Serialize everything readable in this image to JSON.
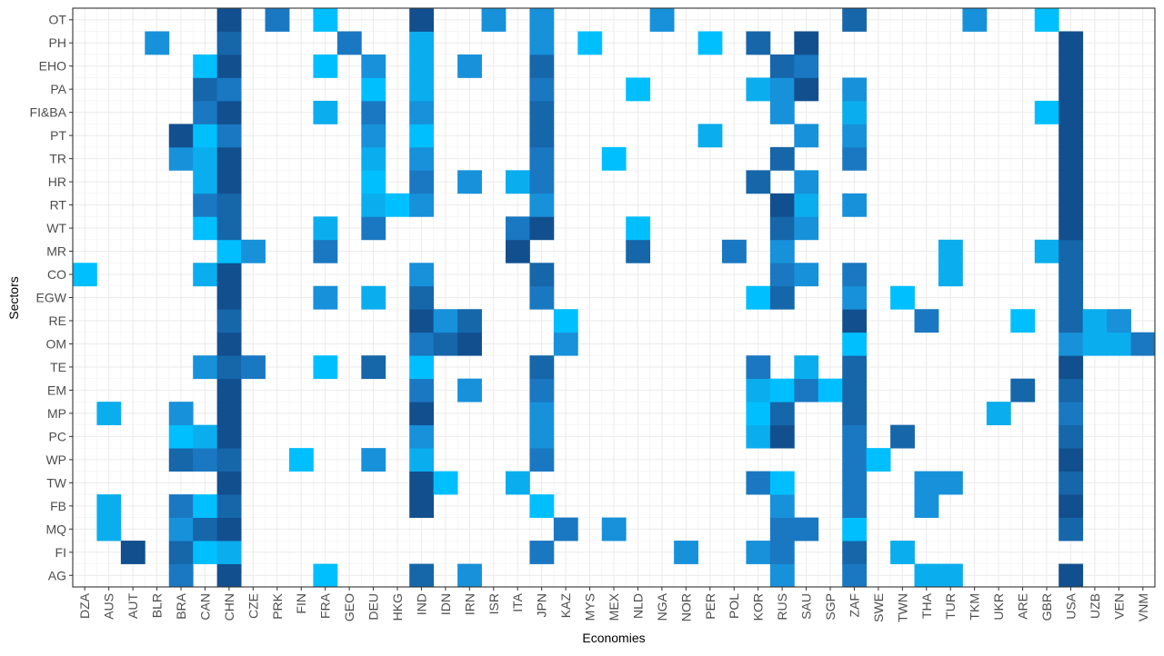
{
  "chart_data": {
    "type": "heatmap",
    "title": "",
    "xlabel": "Economies",
    "ylabel": "Sectors",
    "legend": "none",
    "grid": true,
    "color_scale": [
      "#00bfff",
      "#0aaeee",
      "#1791da",
      "#1a78c2",
      "#1666aa",
      "#124f8e"
    ],
    "x_categories": [
      "DZA",
      "AUS",
      "AUT",
      "BLR",
      "BRA",
      "CAN",
      "CHN",
      "CZE",
      "PRK",
      "FIN",
      "FRA",
      "GEO",
      "DEU",
      "HKG",
      "IND",
      "IDN",
      "IRN",
      "ISR",
      "ITA",
      "JPN",
      "KAZ",
      "MYS",
      "MEX",
      "NLD",
      "NGA",
      "NOR",
      "PER",
      "POL",
      "KOR",
      "RUS",
      "SAU",
      "SGP",
      "ZAF",
      "SWE",
      "TWN",
      "THA",
      "TUR",
      "TKM",
      "UKR",
      "ARE",
      "GBR",
      "USA",
      "UZB",
      "VEN",
      "VNM"
    ],
    "y_categories": [
      "AG",
      "FI",
      "MQ",
      "FB",
      "TW",
      "WP",
      "PC",
      "MP",
      "EM",
      "TE",
      "OM",
      "RE",
      "EGW",
      "CO",
      "MR",
      "WT",
      "RT",
      "HR",
      "TR",
      "PT",
      "FI&BA",
      "PA",
      "EHO",
      "PH",
      "OT"
    ],
    "cells": [
      [
        "BRA",
        "AG",
        3
      ],
      [
        "CHN",
        "AG",
        5
      ],
      [
        "FRA",
        "AG",
        0
      ],
      [
        "IND",
        "AG",
        4
      ],
      [
        "IRN",
        "AG",
        2
      ],
      [
        "RUS",
        "AG",
        2
      ],
      [
        "ZAF",
        "AG",
        3
      ],
      [
        "THA",
        "AG",
        1
      ],
      [
        "TUR",
        "AG",
        1
      ],
      [
        "USA",
        "AG",
        5
      ],
      [
        "AUT",
        "FI",
        5
      ],
      [
        "BRA",
        "FI",
        4
      ],
      [
        "CAN",
        "FI",
        0
      ],
      [
        "CHN",
        "FI",
        1
      ],
      [
        "JPN",
        "FI",
        3
      ],
      [
        "NOR",
        "FI",
        2
      ],
      [
        "KOR",
        "FI",
        2
      ],
      [
        "RUS",
        "FI",
        3
      ],
      [
        "ZAF",
        "FI",
        4
      ],
      [
        "TWN",
        "FI",
        1
      ],
      [
        "AUS",
        "MQ",
        1
      ],
      [
        "BRA",
        "MQ",
        2
      ],
      [
        "CAN",
        "MQ",
        4
      ],
      [
        "CHN",
        "MQ",
        5
      ],
      [
        "KAZ",
        "MQ",
        3
      ],
      [
        "MEX",
        "MQ",
        2
      ],
      [
        "RUS",
        "MQ",
        3
      ],
      [
        "SAU",
        "MQ",
        3
      ],
      [
        "ZAF",
        "MQ",
        0
      ],
      [
        "USA",
        "MQ",
        4
      ],
      [
        "AUS",
        "FB",
        1
      ],
      [
        "BRA",
        "FB",
        3
      ],
      [
        "CAN",
        "FB",
        0
      ],
      [
        "CHN",
        "FB",
        4
      ],
      [
        "IND",
        "FB",
        5
      ],
      [
        "JPN",
        "FB",
        0
      ],
      [
        "RUS",
        "FB",
        2
      ],
      [
        "ZAF",
        "FB",
        3
      ],
      [
        "THA",
        "FB",
        2
      ],
      [
        "USA",
        "FB",
        5
      ],
      [
        "CHN",
        "TW",
        5
      ],
      [
        "IND",
        "TW",
        5
      ],
      [
        "IDN",
        "TW",
        0
      ],
      [
        "ITA",
        "TW",
        1
      ],
      [
        "KOR",
        "TW",
        3
      ],
      [
        "RUS",
        "TW",
        0
      ],
      [
        "ZAF",
        "TW",
        3
      ],
      [
        "THA",
        "TW",
        2
      ],
      [
        "TUR",
        "TW",
        2
      ],
      [
        "USA",
        "TW",
        4
      ],
      [
        "BRA",
        "WP",
        4
      ],
      [
        "CAN",
        "WP",
        3
      ],
      [
        "CHN",
        "WP",
        4
      ],
      [
        "FIN",
        "WP",
        0
      ],
      [
        "DEU",
        "WP",
        2
      ],
      [
        "IND",
        "WP",
        1
      ],
      [
        "JPN",
        "WP",
        3
      ],
      [
        "ZAF",
        "WP",
        3
      ],
      [
        "SWE",
        "WP",
        0
      ],
      [
        "USA",
        "WP",
        5
      ],
      [
        "BRA",
        "PC",
        0
      ],
      [
        "CAN",
        "PC",
        1
      ],
      [
        "CHN",
        "PC",
        5
      ],
      [
        "IND",
        "PC",
        2
      ],
      [
        "JPN",
        "PC",
        2
      ],
      [
        "KOR",
        "PC",
        1
      ],
      [
        "RUS",
        "PC",
        5
      ],
      [
        "ZAF",
        "PC",
        3
      ],
      [
        "TWN",
        "PC",
        4
      ],
      [
        "USA",
        "PC",
        4
      ],
      [
        "AUS",
        "MP",
        1
      ],
      [
        "BRA",
        "MP",
        2
      ],
      [
        "CHN",
        "MP",
        5
      ],
      [
        "IND",
        "MP",
        5
      ],
      [
        "JPN",
        "MP",
        2
      ],
      [
        "KOR",
        "MP",
        0
      ],
      [
        "RUS",
        "MP",
        4
      ],
      [
        "ZAF",
        "MP",
        4
      ],
      [
        "UKR",
        "MP",
        1
      ],
      [
        "USA",
        "MP",
        3
      ],
      [
        "CHN",
        "EM",
        5
      ],
      [
        "IND",
        "EM",
        3
      ],
      [
        "IRN",
        "EM",
        2
      ],
      [
        "JPN",
        "EM",
        3
      ],
      [
        "KOR",
        "EM",
        1
      ],
      [
        "RUS",
        "EM",
        0
      ],
      [
        "SAU",
        "EM",
        3
      ],
      [
        "SGP",
        "EM",
        0
      ],
      [
        "ZAF",
        "EM",
        4
      ],
      [
        "ARE",
        "EM",
        4
      ],
      [
        "USA",
        "EM",
        4
      ],
      [
        "CAN",
        "TE",
        2
      ],
      [
        "CHN",
        "TE",
        4
      ],
      [
        "CZE",
        "TE",
        3
      ],
      [
        "FRA",
        "TE",
        0
      ],
      [
        "DEU",
        "TE",
        4
      ],
      [
        "IND",
        "TE",
        0
      ],
      [
        "JPN",
        "TE",
        4
      ],
      [
        "KOR",
        "TE",
        3
      ],
      [
        "SAU",
        "TE",
        1
      ],
      [
        "ZAF",
        "TE",
        4
      ],
      [
        "USA",
        "TE",
        5
      ],
      [
        "CHN",
        "OM",
        5
      ],
      [
        "IND",
        "OM",
        3
      ],
      [
        "IDN",
        "OM",
        4
      ],
      [
        "IRN",
        "OM",
        5
      ],
      [
        "KAZ",
        "OM",
        2
      ],
      [
        "ZAF",
        "OM",
        0
      ],
      [
        "USA",
        "OM",
        2
      ],
      [
        "UZB",
        "OM",
        1
      ],
      [
        "VEN",
        "OM",
        1
      ],
      [
        "VNM",
        "OM",
        3
      ],
      [
        "CHN",
        "RE",
        4
      ],
      [
        "IND",
        "RE",
        5
      ],
      [
        "IDN",
        "RE",
        2
      ],
      [
        "IRN",
        "RE",
        4
      ],
      [
        "KAZ",
        "RE",
        0
      ],
      [
        "ZAF",
        "RE",
        5
      ],
      [
        "THA",
        "RE",
        3
      ],
      [
        "ARE",
        "RE",
        0
      ],
      [
        "USA",
        "RE",
        4
      ],
      [
        "UZB",
        "RE",
        1
      ],
      [
        "VEN",
        "RE",
        2
      ],
      [
        "CHN",
        "EGW",
        5
      ],
      [
        "FRA",
        "EGW",
        2
      ],
      [
        "DEU",
        "EGW",
        1
      ],
      [
        "IND",
        "EGW",
        4
      ],
      [
        "JPN",
        "EGW",
        3
      ],
      [
        "KOR",
        "EGW",
        0
      ],
      [
        "RUS",
        "EGW",
        4
      ],
      [
        "ZAF",
        "EGW",
        2
      ],
      [
        "TWN",
        "EGW",
        0
      ],
      [
        "USA",
        "EGW",
        4
      ],
      [
        "DZA",
        "CO",
        0
      ],
      [
        "CAN",
        "CO",
        1
      ],
      [
        "CHN",
        "CO",
        5
      ],
      [
        "IND",
        "CO",
        2
      ],
      [
        "JPN",
        "CO",
        4
      ],
      [
        "RUS",
        "CO",
        3
      ],
      [
        "SAU",
        "CO",
        2
      ],
      [
        "ZAF",
        "CO",
        3
      ],
      [
        "TUR",
        "CO",
        1
      ],
      [
        "USA",
        "CO",
        4
      ],
      [
        "CHN",
        "MR",
        0
      ],
      [
        "CZE",
        "MR",
        2
      ],
      [
        "FRA",
        "MR",
        3
      ],
      [
        "ITA",
        "MR",
        5
      ],
      [
        "NLD",
        "MR",
        4
      ],
      [
        "POL",
        "MR",
        3
      ],
      [
        "RUS",
        "MR",
        2
      ],
      [
        "TUR",
        "MR",
        1
      ],
      [
        "GBR",
        "MR",
        1
      ],
      [
        "USA",
        "MR",
        4
      ],
      [
        "CAN",
        "WT",
        0
      ],
      [
        "CHN",
        "WT",
        4
      ],
      [
        "FRA",
        "WT",
        1
      ],
      [
        "DEU",
        "WT",
        3
      ],
      [
        "ITA",
        "WT",
        3
      ],
      [
        "JPN",
        "WT",
        5
      ],
      [
        "NLD",
        "WT",
        0
      ],
      [
        "RUS",
        "WT",
        4
      ],
      [
        "SAU",
        "WT",
        2
      ],
      [
        "USA",
        "WT",
        5
      ],
      [
        "CAN",
        "RT",
        3
      ],
      [
        "CHN",
        "RT",
        4
      ],
      [
        "DEU",
        "RT",
        1
      ],
      [
        "HKG",
        "RT",
        0
      ],
      [
        "IND",
        "RT",
        2
      ],
      [
        "JPN",
        "RT",
        2
      ],
      [
        "RUS",
        "RT",
        5
      ],
      [
        "SAU",
        "RT",
        1
      ],
      [
        "ZAF",
        "RT",
        2
      ],
      [
        "USA",
        "RT",
        5
      ],
      [
        "CAN",
        "HR",
        1
      ],
      [
        "CHN",
        "HR",
        5
      ],
      [
        "DEU",
        "HR",
        0
      ],
      [
        "IND",
        "HR",
        3
      ],
      [
        "IRN",
        "HR",
        2
      ],
      [
        "ITA",
        "HR",
        1
      ],
      [
        "JPN",
        "HR",
        3
      ],
      [
        "KOR",
        "HR",
        4
      ],
      [
        "SAU",
        "HR",
        2
      ],
      [
        "USA",
        "HR",
        5
      ],
      [
        "BRA",
        "TR",
        2
      ],
      [
        "CAN",
        "TR",
        1
      ],
      [
        "CHN",
        "TR",
        5
      ],
      [
        "DEU",
        "TR",
        1
      ],
      [
        "IND",
        "TR",
        2
      ],
      [
        "JPN",
        "TR",
        3
      ],
      [
        "MEX",
        "TR",
        0
      ],
      [
        "RUS",
        "TR",
        4
      ],
      [
        "ZAF",
        "TR",
        3
      ],
      [
        "USA",
        "TR",
        5
      ],
      [
        "BRA",
        "PT",
        5
      ],
      [
        "CAN",
        "PT",
        0
      ],
      [
        "CHN",
        "PT",
        3
      ],
      [
        "DEU",
        "PT",
        2
      ],
      [
        "IND",
        "PT",
        0
      ],
      [
        "JPN",
        "PT",
        4
      ],
      [
        "PER",
        "PT",
        1
      ],
      [
        "SAU",
        "PT",
        2
      ],
      [
        "ZAF",
        "PT",
        2
      ],
      [
        "USA",
        "PT",
        5
      ],
      [
        "CAN",
        "FI&BA",
        3
      ],
      [
        "CHN",
        "FI&BA",
        5
      ],
      [
        "FRA",
        "FI&BA",
        1
      ],
      [
        "DEU",
        "FI&BA",
        3
      ],
      [
        "IND",
        "FI&BA",
        2
      ],
      [
        "JPN",
        "FI&BA",
        4
      ],
      [
        "RUS",
        "FI&BA",
        2
      ],
      [
        "ZAF",
        "FI&BA",
        1
      ],
      [
        "GBR",
        "FI&BA",
        0
      ],
      [
        "USA",
        "FI&BA",
        5
      ],
      [
        "CAN",
        "PA",
        4
      ],
      [
        "CHN",
        "PA",
        3
      ],
      [
        "DEU",
        "PA",
        0
      ],
      [
        "IND",
        "PA",
        1
      ],
      [
        "JPN",
        "PA",
        3
      ],
      [
        "NLD",
        "PA",
        0
      ],
      [
        "KOR",
        "PA",
        1
      ],
      [
        "RUS",
        "PA",
        2
      ],
      [
        "SAU",
        "PA",
        5
      ],
      [
        "ZAF",
        "PA",
        2
      ],
      [
        "USA",
        "PA",
        5
      ],
      [
        "CAN",
        "EHO",
        0
      ],
      [
        "CHN",
        "EHO",
        5
      ],
      [
        "FRA",
        "EHO",
        0
      ],
      [
        "DEU",
        "EHO",
        2
      ],
      [
        "IND",
        "EHO",
        1
      ],
      [
        "IRN",
        "EHO",
        2
      ],
      [
        "JPN",
        "EHO",
        4
      ],
      [
        "RUS",
        "EHO",
        4
      ],
      [
        "SAU",
        "EHO",
        3
      ],
      [
        "USA",
        "EHO",
        5
      ],
      [
        "BLR",
        "PH",
        2
      ],
      [
        "CHN",
        "PH",
        4
      ],
      [
        "GEO",
        "PH",
        3
      ],
      [
        "IND",
        "PH",
        1
      ],
      [
        "JPN",
        "PH",
        2
      ],
      [
        "MYS",
        "PH",
        0
      ],
      [
        "PER",
        "PH",
        0
      ],
      [
        "KOR",
        "PH",
        4
      ],
      [
        "SAU",
        "PH",
        5
      ],
      [
        "USA",
        "PH",
        5
      ],
      [
        "CHN",
        "OT",
        5
      ],
      [
        "PRK",
        "OT",
        3
      ],
      [
        "FRA",
        "OT",
        0
      ],
      [
        "IND",
        "OT",
        5
      ],
      [
        "ISR",
        "OT",
        2
      ],
      [
        "JPN",
        "OT",
        2
      ],
      [
        "NGA",
        "OT",
        2
      ],
      [
        "ZAF",
        "OT",
        4
      ],
      [
        "TKM",
        "OT",
        2
      ],
      [
        "GBR",
        "OT",
        0
      ]
    ]
  }
}
